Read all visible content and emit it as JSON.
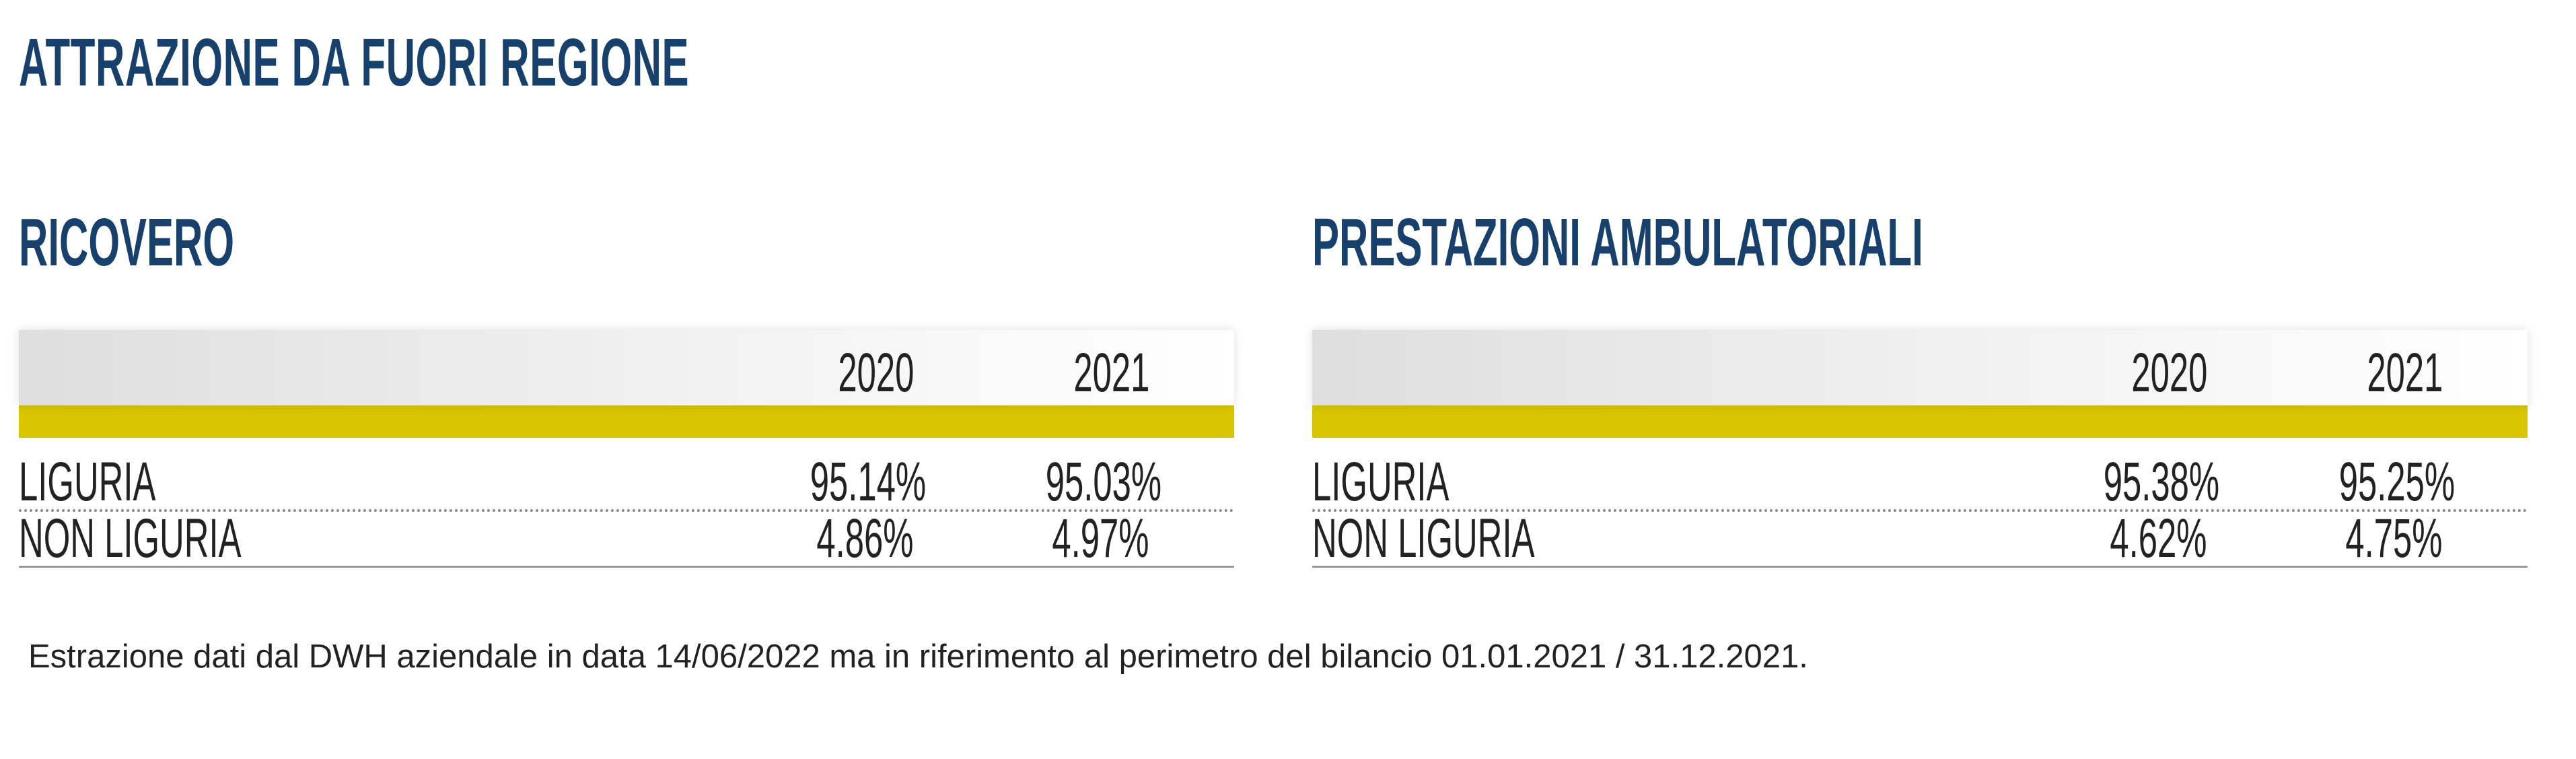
{
  "title": "ATTRAZIONE DA FUORI REGIONE",
  "sections": [
    {
      "title": "RICOVERO",
      "headers": [
        "2020",
        "2021"
      ],
      "rows": [
        {
          "label": "LIGURIA",
          "v2020": "95.14%",
          "v2021": "95.03%"
        },
        {
          "label": "NON LIGURIA",
          "v2020": "4.86%",
          "v2021": "4.97%"
        }
      ]
    },
    {
      "title": "PRESTAZIONI AMBULATORIALI",
      "headers": [
        "2020",
        "2021"
      ],
      "rows": [
        {
          "label": "LIGURIA",
          "v2020": "95.38%",
          "v2021": "95.25%"
        },
        {
          "label": "NON LIGURIA",
          "v2020": "4.62%",
          "v2021": "4.75%"
        }
      ]
    }
  ],
  "footnote": "Estrazione dati dal DWH aziendale in data 14/06/2022 ma in riferimento al perimetro del bilancio 01.01.2021 / 31.12.2021.",
  "colors": {
    "title": "#17406d",
    "accent_bar": "#d8c500"
  }
}
